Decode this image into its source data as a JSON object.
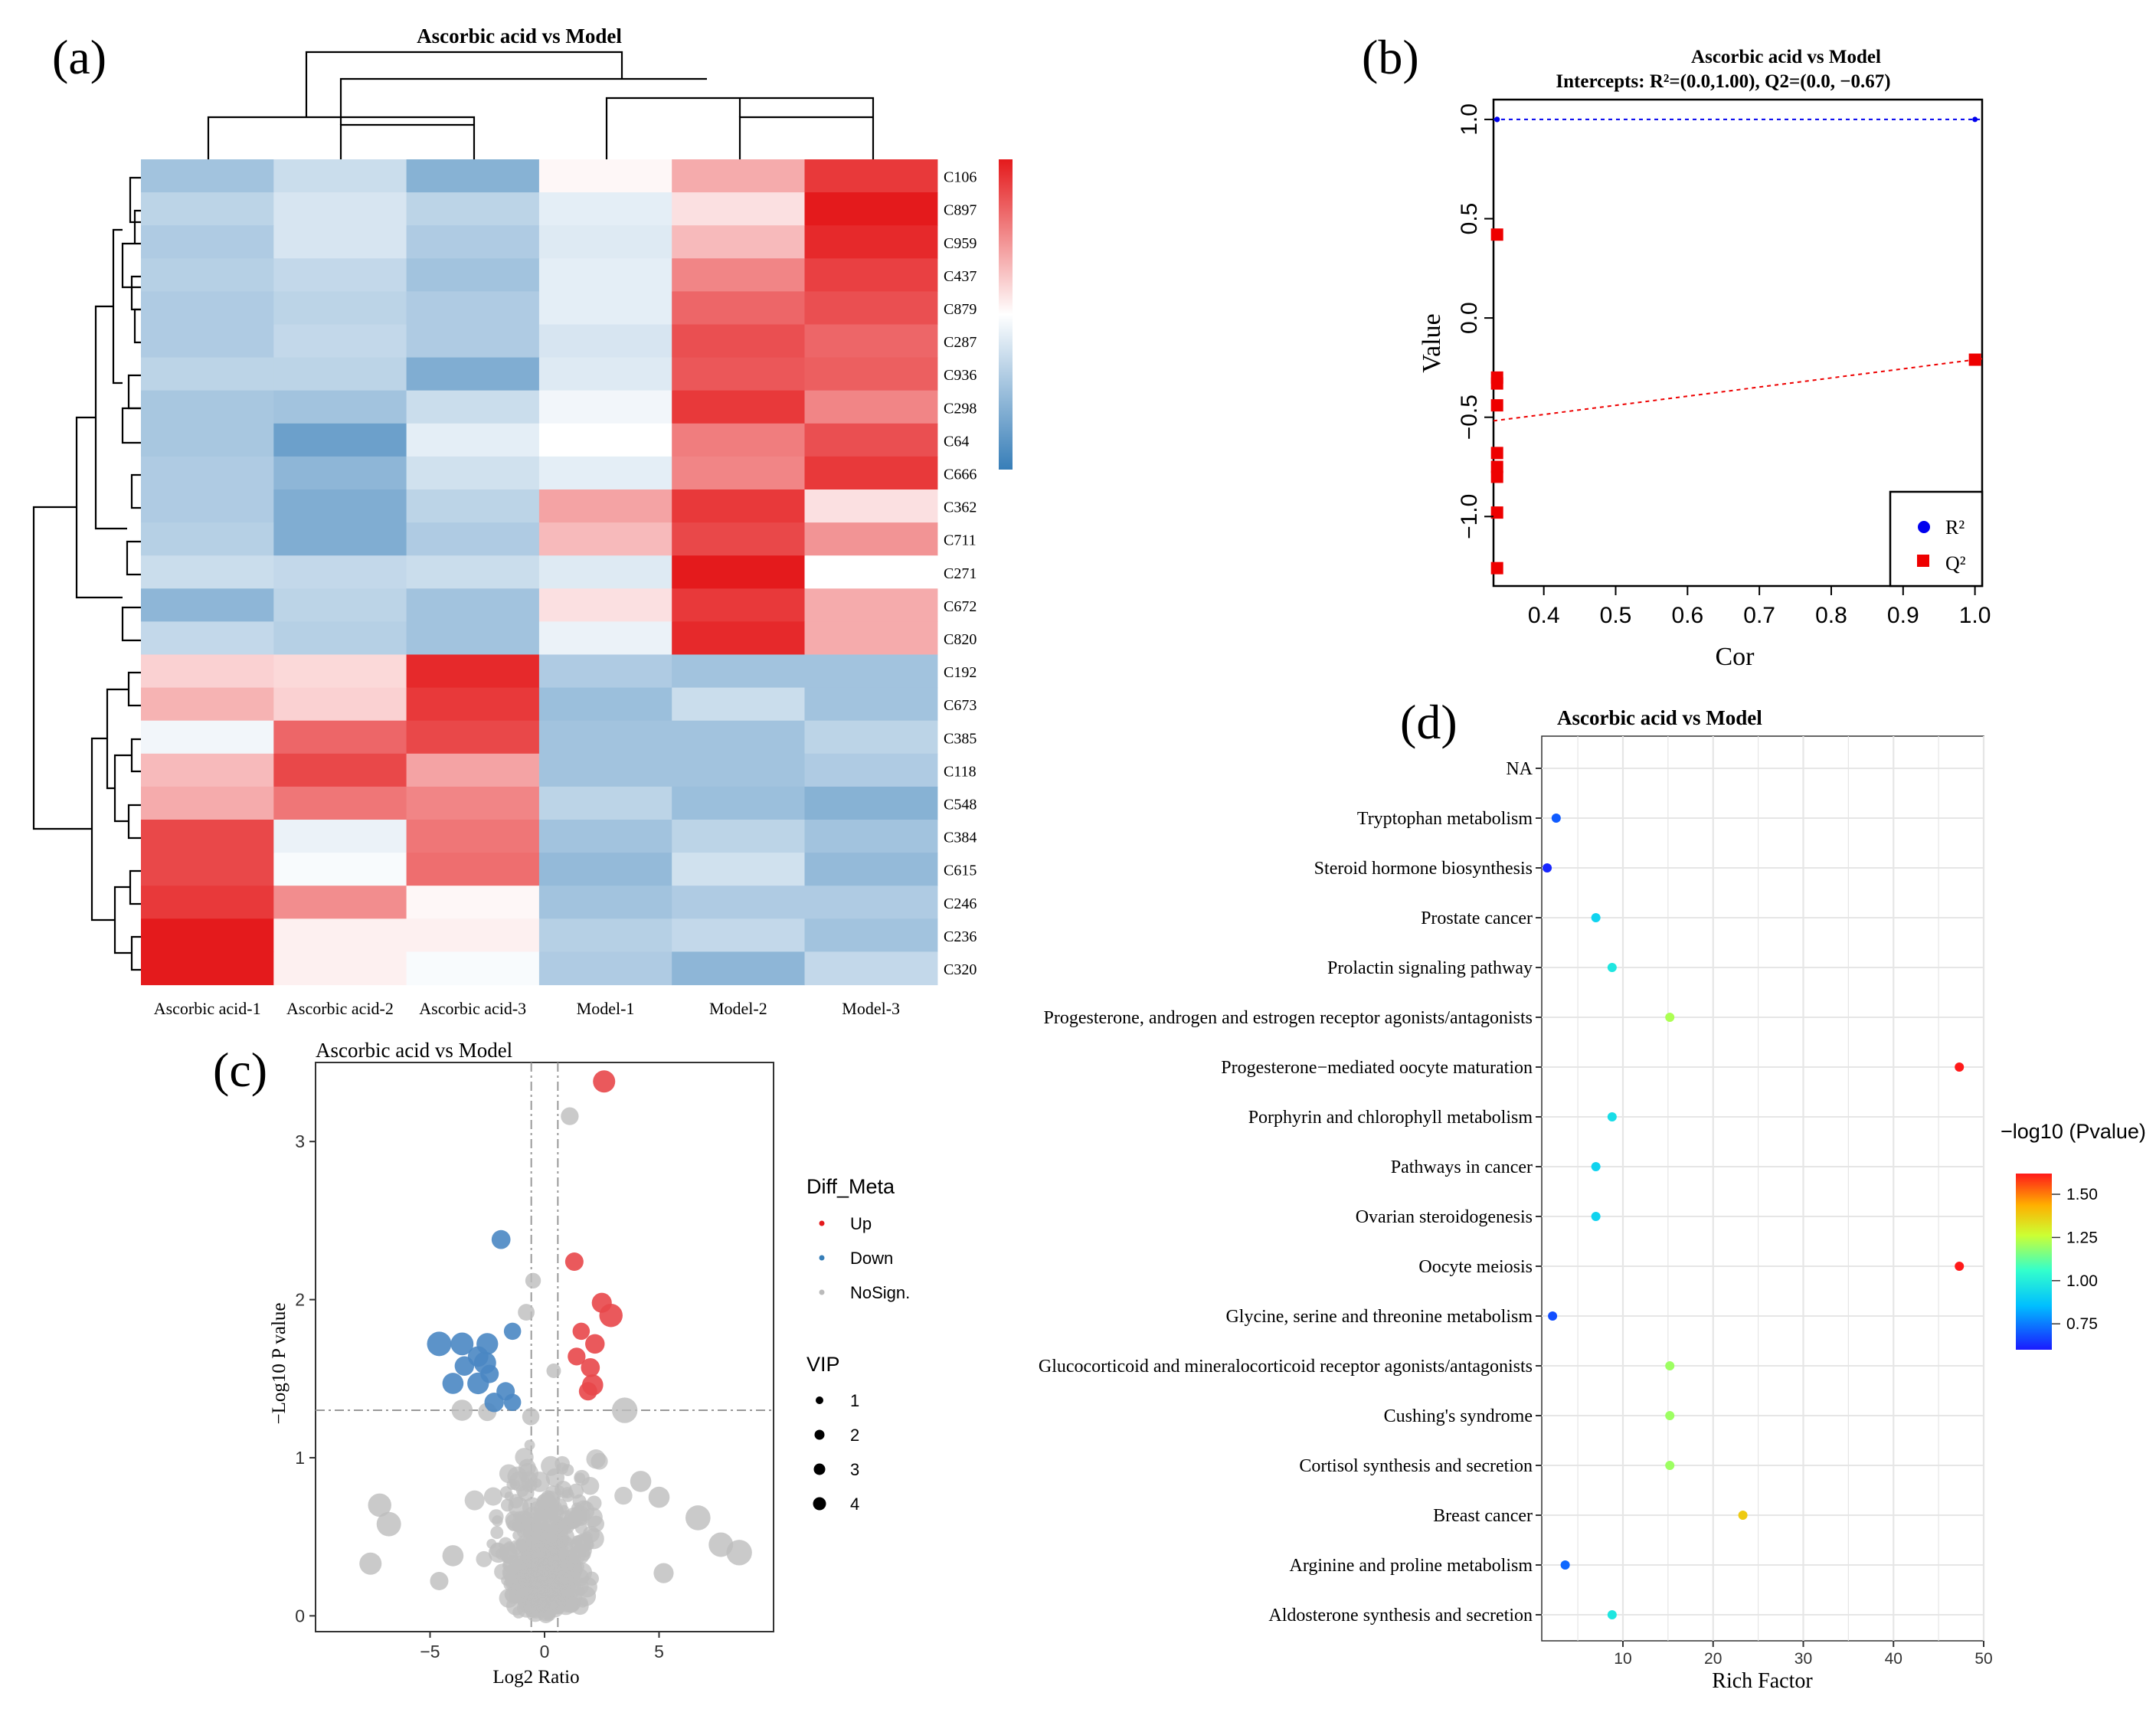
{
  "panels": {
    "a": {
      "letter": "(a)"
    },
    "b": {
      "letter": "(b)"
    },
    "c": {
      "letter": "(c)"
    },
    "d": {
      "letter": "(d)"
    }
  },
  "chart_data": [
    {
      "panel": "a",
      "type": "heatmap",
      "title": "Ascorbic acid vs Model",
      "columns": [
        "Ascorbic acid-1",
        "Ascorbic acid-2",
        "Ascorbic acid-3",
        "Model-1",
        "Model-2",
        "Model-3"
      ],
      "rows": [
        "C106",
        "C897",
        "C959",
        "C437",
        "C879",
        "C287",
        "C936",
        "C298",
        "C64",
        "C666",
        "C362",
        "C711",
        "C271",
        "C672",
        "C820",
        "C192",
        "C673",
        "C385",
        "C118",
        "C548",
        "C384",
        "C615",
        "C246",
        "C236",
        "C320"
      ],
      "values": [
        [
          -0.7,
          -0.4,
          -0.9,
          0.05,
          0.55,
          1.3
        ],
        [
          -0.5,
          -0.3,
          -0.5,
          -0.2,
          0.2,
          1.5
        ],
        [
          -0.6,
          -0.3,
          -0.6,
          -0.25,
          0.45,
          1.4
        ],
        [
          -0.55,
          -0.45,
          -0.7,
          -0.2,
          0.8,
          1.25
        ],
        [
          -0.6,
          -0.5,
          -0.6,
          -0.2,
          1.0,
          1.15
        ],
        [
          -0.6,
          -0.45,
          -0.6,
          -0.3,
          1.15,
          1.0
        ],
        [
          -0.5,
          -0.5,
          -0.95,
          -0.25,
          1.1,
          1.05
        ],
        [
          -0.65,
          -0.7,
          -0.4,
          -0.1,
          1.3,
          0.8
        ],
        [
          -0.65,
          -1.1,
          -0.2,
          0.0,
          0.85,
          1.15
        ],
        [
          -0.6,
          -0.85,
          -0.35,
          -0.2,
          0.8,
          1.3
        ],
        [
          -0.6,
          -0.95,
          -0.5,
          0.6,
          1.3,
          0.2
        ],
        [
          -0.55,
          -0.95,
          -0.6,
          0.45,
          1.2,
          0.7
        ],
        [
          -0.4,
          -0.45,
          -0.4,
          -0.25,
          1.7,
          0.0
        ],
        [
          -0.85,
          -0.5,
          -0.7,
          0.2,
          1.3,
          0.55
        ],
        [
          -0.45,
          -0.55,
          -0.7,
          -0.15,
          1.4,
          0.55
        ],
        [
          0.3,
          0.25,
          1.4,
          -0.6,
          -0.7,
          -0.7
        ],
        [
          0.5,
          0.3,
          1.3,
          -0.75,
          -0.4,
          -0.7
        ],
        [
          -0.1,
          1.0,
          1.2,
          -0.7,
          -0.7,
          -0.5
        ],
        [
          0.45,
          1.2,
          0.6,
          -0.7,
          -0.7,
          -0.6
        ],
        [
          0.55,
          0.9,
          0.8,
          -0.5,
          -0.75,
          -0.9
        ],
        [
          1.2,
          -0.15,
          0.9,
          -0.7,
          -0.5,
          -0.7
        ],
        [
          1.2,
          -0.05,
          0.95,
          -0.8,
          -0.35,
          -0.8
        ],
        [
          1.3,
          0.75,
          0.05,
          -0.7,
          -0.6,
          -0.6
        ],
        [
          1.6,
          0.1,
          0.1,
          -0.55,
          -0.45,
          -0.7
        ],
        [
          1.55,
          0.1,
          -0.05,
          -0.6,
          -0.85,
          -0.45
        ]
      ],
      "color_range": [
        -1.5,
        1.5
      ]
    },
    {
      "panel": "b",
      "type": "scatter",
      "title": "Ascorbic acid vs Model",
      "subtitle": "Intercepts: R²=(0.0,1.00), Q2=(0.0, −0.67)",
      "xlabel": "Cor",
      "ylabel": "Value",
      "xlim": [
        0.33,
        1.01
      ],
      "ylim": [
        -1.35,
        1.1
      ],
      "xticks": [
        "0.4",
        "0.5",
        "0.6",
        "0.7",
        "0.8",
        "0.9",
        "1.0"
      ],
      "xtick_values": [
        0.4,
        0.5,
        0.6,
        0.7,
        0.8,
        0.9,
        1.0
      ],
      "yticks": [
        "−1.0",
        "−0.5",
        "0.0",
        "0.5",
        "1.0"
      ],
      "ytick_values": [
        -1.0,
        -0.5,
        0.0,
        0.5,
        1.0
      ],
      "legend": [
        "R²",
        "Q²"
      ],
      "series": [
        {
          "name": "R²",
          "x": [
            0.335,
            0.335,
            0.335,
            1.0
          ],
          "y": [
            1.0,
            1.0,
            1.0,
            1.0
          ]
        },
        {
          "name": "Q²",
          "x": [
            0.335,
            0.335,
            0.335,
            0.335,
            0.335,
            0.335,
            0.335,
            0.335,
            0.335,
            1.0
          ],
          "y": [
            0.42,
            -0.3,
            -0.33,
            -0.44,
            -0.68,
            -0.75,
            -0.8,
            -0.98,
            -1.26,
            -0.21
          ]
        }
      ],
      "lines": [
        {
          "name": "R²",
          "intercept": 1.0,
          "slope": 0.0
        },
        {
          "name": "Q²",
          "intercept": -0.67,
          "slope": 0.46
        }
      ]
    },
    {
      "panel": "c",
      "type": "scatter",
      "title": "Ascorbic acid vs Model",
      "xlabel": "Log2 Ratio",
      "ylabel": "−Log10 P value",
      "xlim": [
        -10,
        10
      ],
      "ylim": [
        -0.1,
        3.5
      ],
      "xticks": [
        "−5",
        "0",
        "5"
      ],
      "xtick_values": [
        -5,
        0,
        5
      ],
      "yticks": [
        "0",
        "1",
        "2",
        "3"
      ],
      "ytick_values": [
        0,
        1,
        2,
        3
      ],
      "thresholds": {
        "x": [
          -0.58,
          0.58
        ],
        "y": 1.3
      },
      "legend_title": "Diff_Meta",
      "legend": [
        "Up",
        "Down",
        "NoSign."
      ],
      "vip_title": "VIP",
      "vip_levels": [
        "1",
        "2",
        "3",
        "4"
      ],
      "up": [
        [
          2.6,
          3.38,
          3.2
        ],
        [
          1.3,
          2.24,
          2.5
        ],
        [
          2.5,
          1.98,
          2.8
        ],
        [
          2.9,
          1.9,
          3.4
        ],
        [
          1.6,
          1.8,
          2.3
        ],
        [
          2.2,
          1.72,
          2.7
        ],
        [
          1.4,
          1.64,
          2.4
        ],
        [
          2.0,
          1.57,
          2.6
        ],
        [
          2.1,
          1.46,
          3.0
        ],
        [
          1.9,
          1.42,
          2.5
        ]
      ],
      "down": [
        [
          -1.9,
          2.38,
          2.6
        ],
        [
          -1.4,
          1.8,
          2.3
        ],
        [
          -4.6,
          1.72,
          3.6
        ],
        [
          -3.6,
          1.72,
          3.3
        ],
        [
          -2.5,
          1.72,
          3.1
        ],
        [
          -2.9,
          1.64,
          2.9
        ],
        [
          -2.6,
          1.6,
          3.2
        ],
        [
          -3.5,
          1.58,
          2.7
        ],
        [
          -2.4,
          1.53,
          2.5
        ],
        [
          -4.0,
          1.47,
          3.0
        ],
        [
          -2.9,
          1.47,
          3.1
        ],
        [
          -1.7,
          1.42,
          2.5
        ],
        [
          -2.2,
          1.35,
          2.7
        ],
        [
          -1.4,
          1.35,
          2.3
        ]
      ],
      "nonsign_count": 500,
      "nonsign_big": [
        [
          1.1,
          3.16,
          2.4
        ],
        [
          -0.8,
          1.92,
          2.2
        ],
        [
          -0.5,
          2.12,
          2.0
        ],
        [
          0.4,
          1.55,
          1.8
        ],
        [
          -7.2,
          0.7,
          3.4
        ],
        [
          -6.8,
          0.58,
          3.6
        ],
        [
          -7.6,
          0.33,
          3.2
        ],
        [
          6.7,
          0.62,
          3.7
        ],
        [
          7.7,
          0.45,
          3.6
        ],
        [
          8.5,
          0.4,
          3.8
        ],
        [
          5.2,
          0.27,
          2.8
        ],
        [
          5.0,
          0.75,
          3.0
        ],
        [
          3.5,
          1.3,
          3.8
        ],
        [
          -4.0,
          0.38,
          3.0
        ],
        [
          -4.6,
          0.22,
          2.5
        ],
        [
          4.2,
          0.85,
          3.0
        ],
        [
          -3.6,
          1.3,
          3.0
        ],
        [
          -0.6,
          1.26,
          2.3
        ],
        [
          -2.5,
          1.29,
          2.5
        ]
      ]
    },
    {
      "panel": "d",
      "type": "scatter",
      "title": "Ascorbic acid vs Model",
      "xlabel": "Rich Factor",
      "legend_title": "−log10 (Pvalue)",
      "colorbar_ticks": [
        "1.50",
        "1.25",
        "1.00",
        "0.75"
      ],
      "colorbar_tick_values": [
        1.5,
        1.25,
        1.0,
        0.75
      ],
      "color_range": [
        0.6,
        1.62
      ],
      "xlim": [
        1,
        50
      ],
      "xticks": [
        "10",
        "20",
        "30",
        "40",
        "50"
      ],
      "xtick_values": [
        10,
        20,
        30,
        40,
        50
      ],
      "categories": [
        "NA",
        "Tryptophan metabolism",
        "Steroid hormone biosynthesis",
        "Prostate cancer",
        "Prolactin signaling pathway",
        "Progesterone, androgen and estrogen receptor agonists/antagonists",
        "Progesterone−mediated oocyte maturation",
        "Porphyrin and chlorophyll metabolism",
        "Pathways in cancer",
        "Ovarian steroidogenesis",
        "Oocyte meiosis",
        "Glycine, serine and threonine metabolism",
        "Glucocorticoid and mineralocorticoid receptor agonists/antagonists",
        "Cushing's syndrome",
        "Cortisol synthesis and secretion",
        "Breast cancer",
        "Arginine and proline metabolism",
        "Aldosterone synthesis and secretion"
      ],
      "rich_factor": [
        null,
        2.6,
        1.6,
        7.0,
        8.8,
        15.2,
        47.3,
        8.8,
        7.0,
        7.0,
        47.3,
        2.2,
        15.2,
        15.2,
        15.2,
        23.3,
        3.6,
        8.8
      ],
      "pvalue": [
        null,
        0.7,
        0.62,
        0.92,
        0.98,
        1.22,
        1.62,
        0.95,
        0.92,
        0.92,
        1.62,
        0.68,
        1.2,
        1.2,
        1.2,
        1.38,
        0.72,
        0.98
      ]
    }
  ]
}
